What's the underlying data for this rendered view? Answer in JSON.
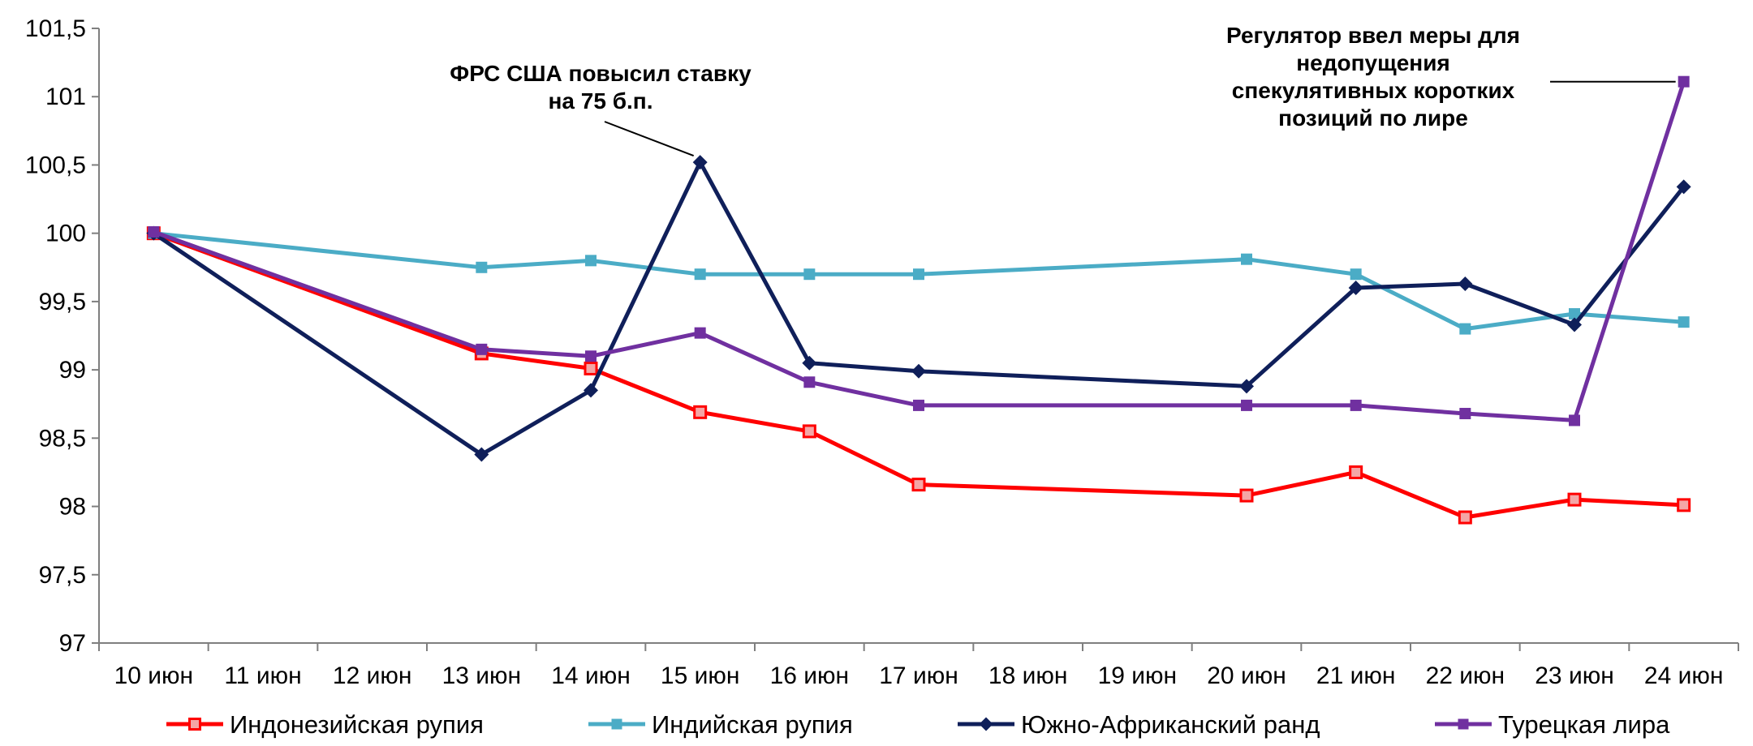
{
  "chart_data": {
    "type": "line",
    "title": "",
    "xlabel": "",
    "ylabel": "",
    "ylim": [
      97,
      101.5
    ],
    "y_ticks": [
      "97",
      "97,5",
      "98",
      "98,5",
      "99",
      "99,5",
      "100",
      "100,5",
      "101",
      "101,5"
    ],
    "categories": [
      "10 июн",
      "11 июн",
      "12 июн",
      "13 июн",
      "14 июн",
      "15 июн",
      "16 июн",
      "17 июн",
      "18 июн",
      "19 июн",
      "20 июн",
      "21 июн",
      "22 июн",
      "23 июн",
      "24 июн"
    ],
    "legend_position": "bottom",
    "grid": false,
    "series": [
      {
        "name": "Индонезийская рупия",
        "color": "#ff0000",
        "marker": "square-open",
        "points": [
          [
            0,
            100.0
          ],
          [
            3,
            99.12
          ],
          [
            4,
            99.01
          ],
          [
            5,
            98.69
          ],
          [
            6,
            98.55
          ],
          [
            7,
            98.16
          ],
          [
            10,
            98.08
          ],
          [
            11,
            98.25
          ],
          [
            12,
            97.92
          ],
          [
            13,
            98.05
          ],
          [
            14,
            98.01
          ]
        ]
      },
      {
        "name": "Индийская рупия",
        "color": "#4bacc6",
        "marker": "square",
        "points": [
          [
            0,
            100.0
          ],
          [
            3,
            99.75
          ],
          [
            4,
            99.8
          ],
          [
            5,
            99.7
          ],
          [
            6,
            99.7
          ],
          [
            7,
            99.7
          ],
          [
            10,
            99.81
          ],
          [
            11,
            99.7
          ],
          [
            12,
            99.3
          ],
          [
            13,
            99.41
          ],
          [
            14,
            99.35
          ]
        ]
      },
      {
        "name": "Южно-Африканский ранд",
        "color": "#0f1f5a",
        "marker": "diamond",
        "points": [
          [
            0,
            100.0
          ],
          [
            3,
            98.38
          ],
          [
            4,
            98.85
          ],
          [
            5,
            100.52
          ],
          [
            6,
            99.05
          ],
          [
            7,
            98.99
          ],
          [
            10,
            98.88
          ],
          [
            11,
            99.6
          ],
          [
            12,
            99.63
          ],
          [
            13,
            99.33
          ],
          [
            14,
            100.34
          ]
        ]
      },
      {
        "name": "Турецкая лира",
        "color": "#7030a0",
        "marker": "square",
        "points": [
          [
            0,
            100.01
          ],
          [
            3,
            99.15
          ],
          [
            4,
            99.1
          ],
          [
            5,
            99.27
          ],
          [
            6,
            98.91
          ],
          [
            7,
            98.74
          ],
          [
            10,
            98.74
          ],
          [
            11,
            98.74
          ],
          [
            12,
            98.68
          ],
          [
            13,
            98.63
          ],
          [
            14,
            101.11
          ]
        ]
      }
    ],
    "annotations": [
      {
        "lines": [
          "ФРС США повысил ставку",
          "на 75 б.п."
        ],
        "target": [
          5,
          100.52
        ]
      },
      {
        "lines": [
          "Регулятор ввел меры для",
          "недопущения",
          "спекулятивных коротких",
          "позиций по лире"
        ],
        "target": [
          14,
          101.11
        ]
      }
    ]
  }
}
